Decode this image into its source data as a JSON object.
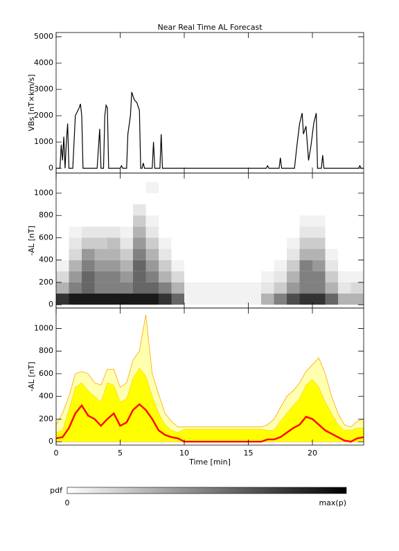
{
  "title": "Near Real Time AL Forecast",
  "xlabel": "Time [min]",
  "colorbar": {
    "label": "pdf",
    "min_label": "0",
    "max_label": "max(p)"
  },
  "chart_data": [
    {
      "type": "line",
      "ylabel": "VBs [nT×km/s]",
      "color": "#000000",
      "xlim": [
        0,
        24
      ],
      "xticks": [
        0,
        5,
        10,
        15,
        20
      ],
      "ylim": [
        -180,
        5160
      ],
      "yticks": [
        0,
        1000,
        2000,
        3000,
        4000,
        5000
      ],
      "x": [
        0,
        0.3,
        0.4,
        0.5,
        0.6,
        0.7,
        0.8,
        0.9,
        1.0,
        1.3,
        1.5,
        1.8,
        1.9,
        2.0,
        2.1,
        3.2,
        3.4,
        3.5,
        3.7,
        3.8,
        3.9,
        4.0,
        4.1,
        5.0,
        5.1,
        5.2,
        5.5,
        5.6,
        5.8,
        5.9,
        6.1,
        6.3,
        6.5,
        6.6,
        6.7,
        6.8,
        6.9,
        7.5,
        7.6,
        7.7,
        8.1,
        8.2,
        8.3,
        16.4,
        16.5,
        16.6,
        17.4,
        17.5,
        17.6,
        18.6,
        18.8,
        19.0,
        19.2,
        19.3,
        19.5,
        19.7,
        19.9,
        20.1,
        20.3,
        20.4,
        20.7,
        20.8,
        20.9,
        23.6,
        23.7,
        23.8,
        24
      ],
      "values": [
        0,
        0,
        900,
        300,
        1200,
        0,
        1000,
        1700,
        0,
        0,
        2000,
        2300,
        2450,
        2000,
        0,
        0,
        1500,
        0,
        0,
        2000,
        2400,
        2300,
        0,
        0,
        100,
        0,
        0,
        1300,
        2000,
        2900,
        2600,
        2500,
        2200,
        0,
        0,
        200,
        0,
        0,
        1000,
        0,
        0,
        1300,
        0,
        0,
        100,
        0,
        0,
        400,
        0,
        0,
        900,
        1700,
        2100,
        1300,
        1600,
        300,
        900,
        1700,
        2100,
        0,
        0,
        500,
        0,
        0,
        100,
        0,
        0
      ]
    },
    {
      "type": "heatmap",
      "ylabel": "-AL [nT]",
      "xlim": [
        0,
        24
      ],
      "xticks": [
        0,
        5,
        10,
        15,
        20
      ],
      "ylim": [
        -30,
        1180
      ],
      "yticks": [
        0,
        200,
        400,
        600,
        800,
        1000
      ],
      "xbins": [
        0,
        1,
        2,
        3,
        4,
        5,
        6,
        7,
        8,
        9,
        10,
        11,
        12,
        13,
        14,
        15,
        16,
        17,
        18,
        19,
        20,
        21,
        22,
        23,
        24
      ],
      "ybins": [
        0,
        100,
        200,
        300,
        400,
        500,
        600,
        700,
        800,
        900,
        1000,
        1100
      ],
      "z": [
        [
          0.8,
          0.3,
          0.15,
          0.05,
          0,
          0,
          0,
          0,
          0,
          0,
          0
        ],
        [
          0.9,
          0.5,
          0.4,
          0.3,
          0.15,
          0.1,
          0.05,
          0,
          0,
          0,
          0
        ],
        [
          0.9,
          0.6,
          0.6,
          0.5,
          0.4,
          0.2,
          0.1,
          0,
          0,
          0,
          0
        ],
        [
          0.9,
          0.5,
          0.5,
          0.4,
          0.3,
          0.2,
          0.1,
          0,
          0,
          0,
          0
        ],
        [
          0.9,
          0.5,
          0.5,
          0.4,
          0.3,
          0.25,
          0.1,
          0,
          0,
          0,
          0
        ],
        [
          0.9,
          0.5,
          0.4,
          0.3,
          0.2,
          0.1,
          0.05,
          0,
          0,
          0,
          0
        ],
        [
          0.9,
          0.6,
          0.6,
          0.6,
          0.5,
          0.4,
          0.3,
          0.2,
          0.1,
          0,
          0
        ],
        [
          0.9,
          0.6,
          0.5,
          0.4,
          0.3,
          0.2,
          0.1,
          0.05,
          0,
          0,
          0.05
        ],
        [
          0.8,
          0.5,
          0.3,
          0.2,
          0.1,
          0.05,
          0,
          0,
          0,
          0,
          0
        ],
        [
          0.6,
          0.3,
          0.15,
          0.05,
          0,
          0,
          0,
          0,
          0,
          0,
          0
        ],
        [
          0.05,
          0.05,
          0,
          0,
          0,
          0,
          0,
          0,
          0,
          0,
          0
        ],
        [
          0.05,
          0.05,
          0,
          0,
          0,
          0,
          0,
          0,
          0,
          0,
          0
        ],
        [
          0.05,
          0.05,
          0,
          0,
          0,
          0,
          0,
          0,
          0,
          0,
          0
        ],
        [
          0.05,
          0.05,
          0,
          0,
          0,
          0,
          0,
          0,
          0,
          0,
          0
        ],
        [
          0.05,
          0.05,
          0,
          0,
          0,
          0,
          0,
          0,
          0,
          0,
          0
        ],
        [
          0.05,
          0.05,
          0,
          0,
          0,
          0,
          0,
          0,
          0,
          0,
          0
        ],
        [
          0.3,
          0.1,
          0.05,
          0,
          0,
          0,
          0,
          0,
          0,
          0,
          0
        ],
        [
          0.5,
          0.2,
          0.1,
          0.05,
          0,
          0,
          0,
          0,
          0,
          0,
          0
        ],
        [
          0.7,
          0.4,
          0.3,
          0.2,
          0.1,
          0.05,
          0,
          0,
          0,
          0,
          0
        ],
        [
          0.8,
          0.5,
          0.5,
          0.5,
          0.3,
          0.2,
          0.1,
          0.05,
          0,
          0,
          0
        ],
        [
          0.8,
          0.5,
          0.5,
          0.4,
          0.3,
          0.2,
          0.1,
          0.05,
          0,
          0,
          0
        ],
        [
          0.6,
          0.3,
          0.2,
          0.1,
          0.05,
          0,
          0,
          0,
          0,
          0,
          0
        ],
        [
          0.3,
          0.1,
          0.05,
          0,
          0,
          0,
          0,
          0,
          0,
          0,
          0
        ],
        [
          0.3,
          0.15,
          0.05,
          0,
          0,
          0,
          0,
          0,
          0,
          0,
          0
        ]
      ]
    },
    {
      "type": "band",
      "ylabel": "-AL [nT]",
      "xlim": [
        0,
        24
      ],
      "xticks": [
        0,
        5,
        10,
        15,
        20
      ],
      "ylim": [
        -30,
        1180
      ],
      "yticks": [
        0,
        200,
        400,
        600,
        800,
        1000
      ],
      "median_color": "#ff0000",
      "inner_color": "#ffff00",
      "outer_color": "#ffffb0",
      "edge_color": "#ffa500",
      "x": [
        0,
        0.5,
        1,
        1.5,
        2,
        2.5,
        3,
        3.5,
        4,
        4.5,
        5,
        5.5,
        6,
        6.5,
        7,
        7.5,
        8,
        8.5,
        9,
        9.5,
        10,
        10.5,
        11,
        11.5,
        12,
        12.5,
        13,
        13.5,
        14,
        14.5,
        15,
        15.5,
        16,
        16.5,
        17,
        17.5,
        18,
        18.5,
        19,
        19.5,
        20,
        20.5,
        21,
        21.5,
        22,
        22.5,
        23,
        23.5,
        24
      ],
      "outer_upper": [
        150,
        250,
        400,
        600,
        620,
        600,
        520,
        500,
        640,
        640,
        480,
        520,
        720,
        800,
        1120,
        600,
        420,
        250,
        180,
        130,
        130,
        130,
        130,
        130,
        130,
        130,
        130,
        130,
        130,
        130,
        130,
        130,
        130,
        150,
        200,
        300,
        400,
        450,
        520,
        620,
        680,
        740,
        600,
        400,
        250,
        150,
        130,
        180,
        200
      ],
      "inner_upper": [
        80,
        100,
        280,
        480,
        520,
        450,
        400,
        350,
        520,
        500,
        350,
        380,
        560,
        650,
        580,
        400,
        250,
        150,
        100,
        80,
        110,
        110,
        110,
        110,
        110,
        110,
        110,
        110,
        110,
        110,
        110,
        110,
        110,
        100,
        100,
        180,
        250,
        320,
        380,
        500,
        550,
        480,
        350,
        250,
        150,
        100,
        100,
        120,
        120
      ],
      "median": [
        30,
        40,
        120,
        250,
        320,
        230,
        200,
        140,
        200,
        250,
        140,
        170,
        280,
        330,
        280,
        200,
        100,
        60,
        40,
        30,
        0,
        0,
        0,
        0,
        0,
        0,
        0,
        0,
        0,
        0,
        0,
        0,
        0,
        20,
        20,
        40,
        80,
        120,
        150,
        220,
        200,
        150,
        100,
        70,
        40,
        10,
        0,
        30,
        40
      ]
    }
  ]
}
